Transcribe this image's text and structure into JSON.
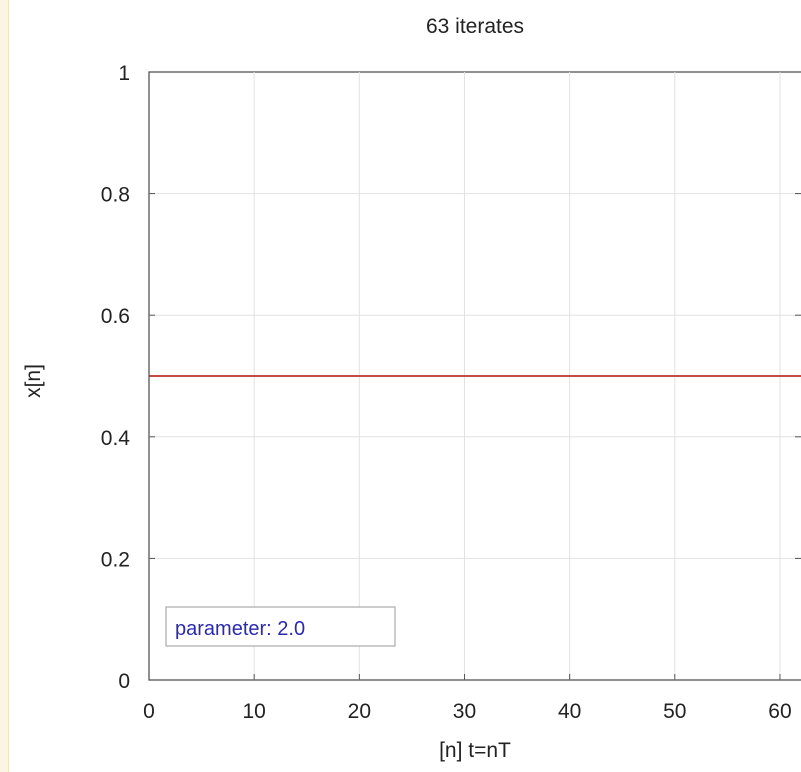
{
  "chart_data": {
    "type": "line",
    "title": "63 iterates",
    "xlabel": "[n]  t=nT",
    "ylabel": "x[n]",
    "xlim": [
      0,
      62
    ],
    "ylim": [
      0,
      1
    ],
    "xticks": [
      0,
      10,
      20,
      30,
      40,
      50,
      60
    ],
    "yticks": [
      0,
      0.2,
      0.4,
      0.6,
      0.8,
      1
    ],
    "ytick_labels": [
      "0",
      "0.2",
      "0.4",
      "0.6",
      "0.8",
      "1"
    ],
    "grid": true,
    "legend_text": "parameter: 2.0",
    "legend_placement": "bottom-left",
    "series": [
      {
        "x": [
          0,
          62
        ],
        "y": [
          0.5,
          0.5
        ],
        "color": "#c0302a"
      }
    ]
  },
  "colors": {
    "series": "#c0302a",
    "legend_text": "#2a2ab0",
    "grid": "#e2e2e2",
    "frame": "#555555"
  }
}
